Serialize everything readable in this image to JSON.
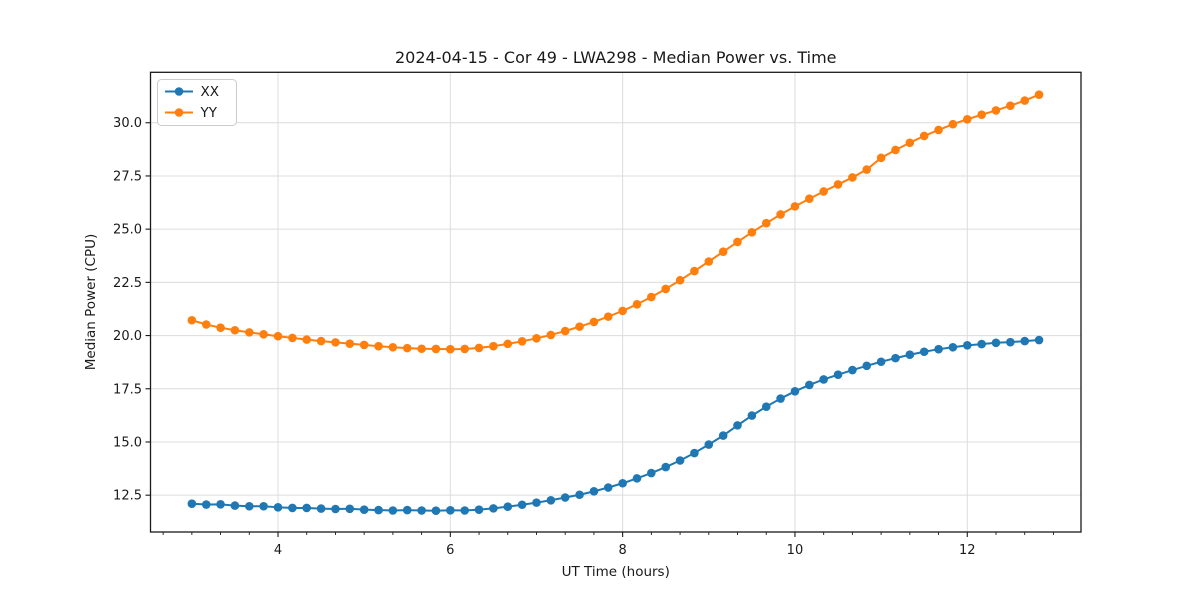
{
  "figure": {
    "background": "#ffffff"
  },
  "colors": {
    "grid": "#dcdcdc",
    "spine": "#1a1a1a",
    "text": "#1a1a1a",
    "legend_border": "#cccccc",
    "legend_bg": "#ffffff",
    "series_xx": "#1f77b4",
    "series_yy": "#ff7f0e"
  },
  "chart_data": {
    "type": "line",
    "title": "2024-04-15 - Cor 49 - LWA298 - Median Power vs. Time",
    "xlabel": "UT Time (hours)",
    "ylabel": "Median Power (CPU)",
    "xlim": [
      2.52,
      13.32
    ],
    "ylim": [
      10.77,
      32.37
    ],
    "xticks": [
      4,
      6,
      8,
      10,
      12
    ],
    "xtick_labels": [
      "4",
      "6",
      "8",
      "10",
      "12"
    ],
    "x_minor_tick_step": 0.3333,
    "yticks": [
      12.5,
      15.0,
      17.5,
      20.0,
      22.5,
      25.0,
      27.5,
      30.0
    ],
    "ytick_labels": [
      "12.5",
      "15.0",
      "17.5",
      "20.0",
      "22.5",
      "25.0",
      "27.5",
      "30.0"
    ],
    "grid": true,
    "legend_position": "upper-left",
    "marker": "circle",
    "x": [
      3.0,
      3.167,
      3.333,
      3.5,
      3.667,
      3.833,
      4.0,
      4.167,
      4.333,
      4.5,
      4.667,
      4.833,
      5.0,
      5.167,
      5.333,
      5.5,
      5.667,
      5.833,
      6.0,
      6.167,
      6.333,
      6.5,
      6.667,
      6.833,
      7.0,
      7.167,
      7.333,
      7.5,
      7.667,
      7.833,
      8.0,
      8.167,
      8.333,
      8.5,
      8.667,
      8.833,
      9.0,
      9.167,
      9.333,
      9.5,
      9.667,
      9.833,
      10.0,
      10.167,
      10.333,
      10.5,
      10.667,
      10.833,
      11.0,
      11.167,
      11.333,
      11.5,
      11.667,
      11.833,
      12.0,
      12.167,
      12.333,
      12.5,
      12.667,
      12.833
    ],
    "series": [
      {
        "name": "XX",
        "color": "#1f77b4",
        "values": [
          12.1,
          12.06,
          12.07,
          12.01,
          11.98,
          11.98,
          11.93,
          11.9,
          11.9,
          11.87,
          11.85,
          11.86,
          11.82,
          11.8,
          11.78,
          11.8,
          11.78,
          11.77,
          11.79,
          11.78,
          11.82,
          11.88,
          11.96,
          12.05,
          12.15,
          12.26,
          12.39,
          12.52,
          12.68,
          12.86,
          13.06,
          13.29,
          13.54,
          13.82,
          14.13,
          14.48,
          14.88,
          15.3,
          15.78,
          16.24,
          16.66,
          17.04,
          17.38,
          17.68,
          17.94,
          18.16,
          18.38,
          18.58,
          18.77,
          18.94,
          19.1,
          19.24,
          19.36,
          19.45,
          19.54,
          19.6,
          19.66,
          19.69,
          19.74,
          19.79
        ]
      },
      {
        "name": "YY",
        "color": "#ff7f0e",
        "values": [
          20.72,
          20.52,
          20.37,
          20.25,
          20.15,
          20.06,
          19.97,
          19.89,
          19.81,
          19.74,
          19.68,
          19.62,
          19.56,
          19.5,
          19.45,
          19.41,
          19.38,
          19.37,
          19.36,
          19.37,
          19.42,
          19.5,
          19.61,
          19.73,
          19.87,
          20.03,
          20.21,
          20.42,
          20.64,
          20.89,
          21.16,
          21.47,
          21.81,
          22.19,
          22.6,
          23.03,
          23.48,
          23.94,
          24.4,
          24.85,
          25.28,
          25.69,
          26.07,
          26.43,
          26.77,
          27.1,
          27.43,
          27.8,
          28.35,
          28.72,
          29.06,
          29.38,
          29.66,
          29.93,
          30.16,
          30.38,
          30.58,
          30.8,
          31.04,
          31.32
        ]
      }
    ]
  }
}
